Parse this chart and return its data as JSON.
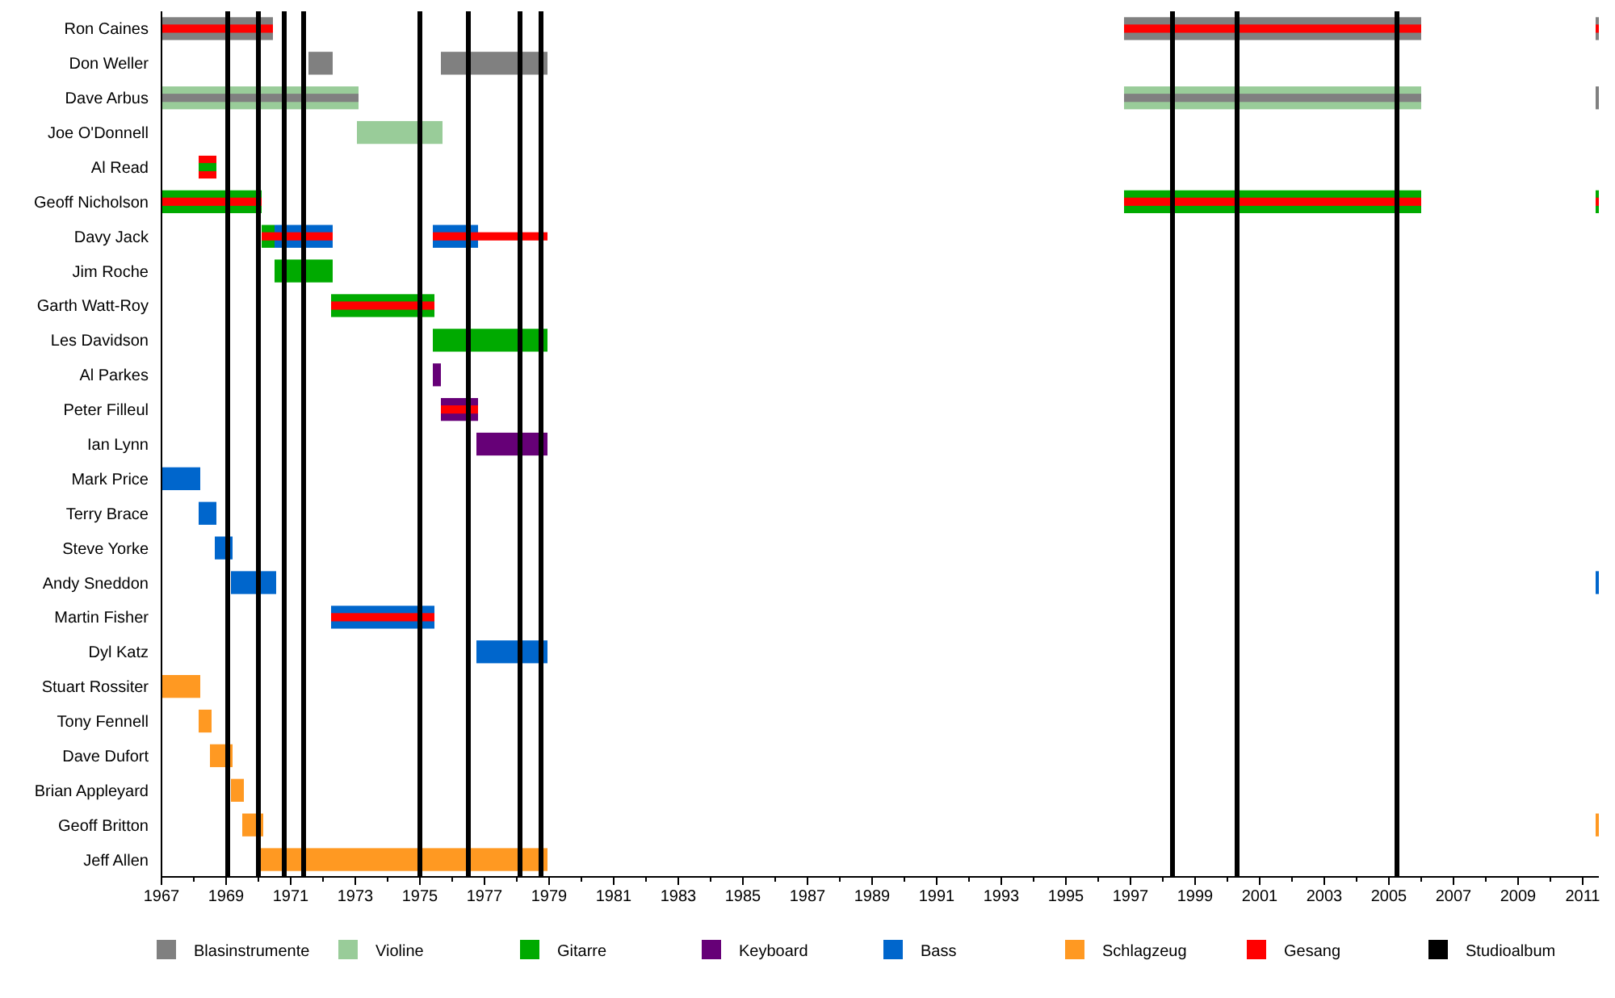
{
  "chart_data": {
    "type": "bar",
    "orientation": "horizontal",
    "legend": "bottom",
    "grid": false,
    "categories": [
      "Ron Caines",
      "Don Weller",
      "Dave Arbus",
      "Joe O'Donnell",
      "Al Read",
      "Geoff Nicholson",
      "Davy Jack",
      "Jim Roche",
      "Garth Watt-Roy",
      "Les Davidson",
      "Al Parkes",
      "Peter Filleul",
      "Ian Lynn",
      "Mark Price",
      "Terry Brace",
      "Steve Yorke",
      "Andy Sneddon",
      "Martin Fisher",
      "Dyl Katz",
      "Stuart Rossiter",
      "Tony Fennell",
      "Dave Dufort",
      "Brian Appleyard",
      "Geoff Britton",
      "Jeff Allen"
    ],
    "xlim": [
      1967,
      2011.5
    ],
    "xticks": [
      1967,
      {
        "value": 1968,
        "label": null
      },
      1969,
      {
        "value": 1970,
        "label": null
      },
      1971,
      {
        "value": 1972,
        "label": null
      },
      1973,
      {
        "value": 1974,
        "label": null
      },
      1975,
      {
        "value": 1976,
        "label": null
      },
      1977,
      {
        "value": 1978,
        "label": null
      },
      1979,
      {
        "value": 1980,
        "label": null
      },
      1981,
      {
        "value": 1982,
        "label": null
      },
      1983,
      {
        "value": 1984,
        "label": null
      },
      1985,
      {
        "value": 1986,
        "label": null
      },
      1987,
      {
        "value": 1988,
        "label": null
      },
      1989,
      {
        "value": 1990,
        "label": null
      },
      1991,
      {
        "value": 1992,
        "label": null
      },
      1993,
      {
        "value": 1994,
        "label": null
      },
      1995,
      {
        "value": 1996,
        "label": null
      },
      1997,
      {
        "value": 1998,
        "label": null
      },
      1999,
      {
        "value": 2000,
        "label": null
      },
      2001,
      {
        "value": 2002,
        "label": null
      },
      2003,
      {
        "value": 2004,
        "label": null
      },
      2005,
      {
        "value": 2006,
        "label": null
      },
      2007,
      {
        "value": 2008,
        "label": null
      },
      2009,
      {
        "value": 2010,
        "label": null
      },
      2011
    ],
    "series": [
      {
        "name": "Blasinstrumente",
        "color": "#808080",
        "base": [
          1967,
          1971.55,
          null,
          null,
          null,
          null,
          null,
          null,
          null,
          null,
          null,
          null,
          null,
          null,
          null,
          null,
          null,
          null,
          null,
          null,
          null,
          null,
          null,
          null,
          null
        ],
        "values": [
          3.45,
          0.75,
          null,
          null,
          null,
          null,
          null,
          null,
          null,
          null,
          null,
          null,
          null,
          null,
          null,
          null,
          null,
          null,
          null,
          null,
          null,
          null,
          null,
          null,
          null
        ]
      },
      {
        "color": "#808080",
        "base": [
          1996.8,
          1975.65,
          null,
          null,
          null,
          null,
          null,
          null,
          null,
          null,
          null,
          null,
          null,
          null,
          null,
          null,
          null,
          null,
          null,
          null,
          null,
          null,
          null,
          null,
          null
        ],
        "values": [
          9.2,
          3.3,
          null,
          null,
          null,
          null,
          null,
          null,
          null,
          null,
          null,
          null,
          null,
          null,
          null,
          null,
          null,
          null,
          null,
          null,
          null,
          null,
          null,
          null,
          null
        ]
      },
      {
        "color": "#808080",
        "base": [
          2011.4,
          null,
          2011.4,
          null,
          null,
          null,
          null,
          null,
          null,
          null,
          null,
          null,
          null,
          null,
          null,
          null,
          null,
          null,
          null,
          null,
          null,
          null,
          null,
          null,
          null
        ],
        "values": [
          0.1,
          null,
          0.1,
          null,
          null,
          null,
          null,
          null,
          null,
          null,
          null,
          null,
          null,
          null,
          null,
          null,
          null,
          null,
          null,
          null,
          null,
          null,
          null,
          null,
          null
        ]
      },
      {
        "name": "Violine",
        "color": "#99cc99",
        "base": [
          null,
          null,
          1967,
          1973.05,
          null,
          null,
          null,
          null,
          null,
          null,
          null,
          null,
          null,
          null,
          null,
          null,
          null,
          null,
          null,
          null,
          null,
          null,
          null,
          null,
          null
        ],
        "values": [
          null,
          null,
          6.1,
          2.65,
          null,
          null,
          null,
          null,
          null,
          null,
          null,
          null,
          null,
          null,
          null,
          null,
          null,
          null,
          null,
          null,
          null,
          null,
          null,
          null,
          null
        ]
      },
      {
        "color": "#99cc99",
        "base": [
          null,
          null,
          1996.8,
          null,
          null,
          null,
          null,
          null,
          null,
          null,
          null,
          null,
          null,
          null,
          null,
          null,
          null,
          null,
          null,
          null,
          null,
          null,
          null,
          null,
          null
        ],
        "values": [
          null,
          null,
          9.2,
          null,
          null,
          null,
          null,
          null,
          null,
          null,
          null,
          null,
          null,
          null,
          null,
          null,
          null,
          null,
          null,
          null,
          null,
          null,
          null,
          null,
          null
        ]
      },
      {
        "name": "Gitarre",
        "color": "#00aa00",
        "base": [
          null,
          null,
          null,
          null,
          null,
          1967,
          1970.1,
          1970.5,
          1972.25,
          1975.4,
          null,
          null,
          null,
          null,
          null,
          null,
          null,
          null,
          null,
          null,
          null,
          null,
          null,
          null,
          null
        ],
        "values": [
          null,
          null,
          null,
          null,
          null,
          3.1,
          0.4,
          1.8,
          3.2,
          3.55,
          null,
          null,
          null,
          null,
          null,
          null,
          null,
          null,
          null,
          null,
          null,
          null,
          null,
          null,
          null
        ]
      },
      {
        "color": "#00aa00",
        "base": [
          null,
          null,
          null,
          null,
          null,
          1996.8,
          null,
          null,
          null,
          null,
          null,
          null,
          null,
          null,
          null,
          null,
          null,
          null,
          null,
          null,
          null,
          null,
          null,
          null,
          null
        ],
        "values": [
          null,
          null,
          null,
          null,
          null,
          9.2,
          null,
          null,
          null,
          null,
          null,
          null,
          null,
          null,
          null,
          null,
          null,
          null,
          null,
          null,
          null,
          null,
          null,
          null,
          null
        ]
      },
      {
        "color": "#00aa00",
        "base": [
          null,
          null,
          null,
          null,
          null,
          2011.4,
          null,
          null,
          null,
          null,
          null,
          null,
          null,
          null,
          null,
          null,
          null,
          null,
          null,
          null,
          null,
          null,
          null,
          null,
          null
        ],
        "values": [
          null,
          null,
          null,
          null,
          null,
          0.1,
          null,
          null,
          null,
          null,
          null,
          null,
          null,
          null,
          null,
          null,
          null,
          null,
          null,
          null,
          null,
          null,
          null,
          null,
          null
        ]
      },
      {
        "name": "Keyboard",
        "color": "#660077",
        "base": [
          null,
          null,
          null,
          null,
          null,
          null,
          null,
          null,
          null,
          null,
          1975.4,
          1975.65,
          1976.75,
          null,
          null,
          null,
          null,
          null,
          null,
          null,
          null,
          null,
          null,
          null,
          null
        ],
        "values": [
          null,
          null,
          null,
          null,
          null,
          null,
          null,
          null,
          null,
          null,
          0.25,
          1.15,
          2.2,
          null,
          null,
          null,
          null,
          null,
          null,
          null,
          null,
          null,
          null,
          null,
          null
        ]
      },
      {
        "name": "Bass",
        "color": "#0066cc",
        "base": [
          null,
          null,
          null,
          null,
          null,
          null,
          1970.5,
          null,
          null,
          null,
          null,
          null,
          null,
          1967,
          1968.15,
          1968.65,
          1969.15,
          1972.25,
          1976.75,
          null,
          null,
          null,
          null,
          null,
          null
        ],
        "values": [
          null,
          null,
          null,
          null,
          null,
          null,
          1.8,
          null,
          null,
          null,
          null,
          null,
          null,
          1.2,
          0.55,
          0.55,
          1.4,
          3.2,
          2.2,
          null,
          null,
          null,
          null,
          null,
          null
        ]
      },
      {
        "color": "#0066cc",
        "base": [
          null,
          null,
          null,
          null,
          null,
          null,
          1975.4,
          null,
          null,
          null,
          null,
          null,
          null,
          null,
          null,
          null,
          2011.4,
          null,
          null,
          null,
          null,
          null,
          null,
          null,
          null
        ],
        "values": [
          null,
          null,
          null,
          null,
          null,
          null,
          1.4,
          null,
          null,
          null,
          null,
          null,
          null,
          null,
          null,
          null,
          0.1,
          null,
          null,
          null,
          null,
          null,
          null,
          null,
          null
        ]
      },
      {
        "name": "Schlagzeug",
        "color": "#ff9922",
        "base": [
          null,
          null,
          null,
          null,
          null,
          null,
          null,
          null,
          null,
          null,
          null,
          null,
          null,
          null,
          null,
          null,
          null,
          null,
          null,
          1967,
          1968.15,
          1968.5,
          1969.15,
          1969.5,
          1970.05
        ],
        "values": [
          null,
          null,
          null,
          null,
          null,
          null,
          null,
          null,
          null,
          null,
          null,
          null,
          null,
          null,
          null,
          null,
          null,
          null,
          null,
          1.2,
          0.4,
          0.7,
          0.4,
          0.65,
          8.9
        ]
      },
      {
        "color": "#ff9922",
        "base": [
          null,
          null,
          null,
          null,
          null,
          null,
          null,
          null,
          null,
          null,
          null,
          null,
          null,
          null,
          null,
          null,
          null,
          null,
          null,
          null,
          null,
          null,
          null,
          2011.4,
          null
        ],
        "values": [
          null,
          null,
          null,
          null,
          null,
          null,
          null,
          null,
          null,
          null,
          null,
          null,
          null,
          null,
          null,
          null,
          null,
          null,
          null,
          null,
          null,
          null,
          null,
          0.1,
          null
        ]
      },
      {
        "name": "Gesang",
        "color": "#ff0000",
        "base": [
          1967,
          null,
          null,
          null,
          1968.15,
          1967,
          1970.1,
          null,
          1972.25,
          null,
          null,
          1975.65,
          null,
          null,
          null,
          null,
          null,
          1972.25,
          null,
          null,
          null,
          null,
          null,
          null,
          null
        ],
        "values": [
          3.45,
          null,
          null,
          null,
          0.55,
          3.1,
          2.2,
          null,
          3.2,
          null,
          null,
          1.15,
          null,
          null,
          null,
          null,
          null,
          3.2,
          null,
          null,
          null,
          null,
          null,
          null,
          null
        ]
      },
      {
        "color": "#00aa00",
        "base": [
          null,
          null,
          null,
          null,
          1968.15,
          null,
          null,
          null,
          null,
          null,
          null,
          null,
          null,
          null,
          null,
          null,
          null,
          null,
          null,
          null,
          null,
          null,
          null,
          null,
          null
        ],
        "values": [
          null,
          null,
          null,
          null,
          0.55,
          null,
          null,
          null,
          null,
          null,
          null,
          null,
          null,
          null,
          null,
          null,
          null,
          null,
          null,
          null,
          null,
          null,
          null,
          null,
          null
        ]
      },
      {
        "color": "#ff0000",
        "base": [
          1996.8,
          null,
          null,
          null,
          null,
          1996.8,
          1975.4,
          null,
          null,
          null,
          null,
          null,
          null,
          null,
          null,
          null,
          null,
          null,
          null,
          null,
          null,
          null,
          null,
          null,
          null
        ],
        "values": [
          9.2,
          null,
          null,
          null,
          null,
          9.2,
          1.4,
          null,
          null,
          null,
          null,
          null,
          null,
          null,
          null,
          null,
          null,
          null,
          null,
          null,
          null,
          null,
          null,
          null,
          null
        ]
      },
      {
        "color": "#ff0000",
        "base": [
          2011.4,
          null,
          null,
          null,
          null,
          2011.4,
          1976.8,
          null,
          null,
          null,
          null,
          null,
          null,
          null,
          null,
          null,
          null,
          null,
          null,
          null,
          null,
          null,
          null,
          null,
          null
        ],
        "values": [
          0.1,
          null,
          null,
          null,
          null,
          0.1,
          2.15,
          null,
          null,
          null,
          null,
          null,
          null,
          null,
          null,
          null,
          null,
          null,
          null,
          null,
          null,
          null,
          null,
          null,
          null
        ]
      },
      {
        "color": "#808080",
        "base": [
          null,
          null,
          1967,
          null,
          null,
          null,
          null,
          null,
          null,
          null,
          null,
          null,
          null,
          null,
          null,
          null,
          null,
          null,
          null,
          null,
          null,
          null,
          null,
          null,
          null
        ],
        "values": [
          null,
          null,
          6.1,
          null,
          null,
          null,
          null,
          null,
          null,
          null,
          null,
          null,
          null,
          null,
          null,
          null,
          null,
          null,
          null,
          null,
          null,
          null,
          null,
          null,
          null
        ]
      },
      {
        "color": "#808080",
        "base": [
          null,
          null,
          1996.8,
          null,
          null,
          null,
          null,
          null,
          null,
          null,
          null,
          null,
          null,
          null,
          null,
          null,
          null,
          null,
          null,
          null,
          null,
          null,
          null,
          null,
          null
        ],
        "values": [
          null,
          null,
          9.2,
          null,
          null,
          null,
          null,
          null,
          null,
          null,
          null,
          null,
          null,
          null,
          null,
          null,
          null,
          null,
          null,
          null,
          null,
          null,
          null,
          null,
          null
        ]
      }
    ],
    "ref_lines": [
      {
        "axis": "x",
        "value": 1969.05,
        "label": "Studioalbum",
        "color": "#000000"
      },
      {
        "axis": "x",
        "value": 1970.0,
        "color": "#000000"
      },
      {
        "axis": "x",
        "value": 1970.8,
        "color": "#000000"
      },
      {
        "axis": "x",
        "value": 1971.4,
        "color": "#000000"
      },
      {
        "axis": "x",
        "value": 1975.0,
        "color": "#000000"
      },
      {
        "axis": "x",
        "value": 1976.5,
        "color": "#000000"
      },
      {
        "axis": "x",
        "value": 1978.1,
        "color": "#000000"
      },
      {
        "axis": "x",
        "value": 1978.75,
        "color": "#000000"
      },
      {
        "axis": "x",
        "value": 1998.3,
        "color": "#000000"
      },
      {
        "axis": "x",
        "value": 2000.3,
        "color": "#000000"
      },
      {
        "axis": "x",
        "value": 2005.25,
        "color": "#000000"
      }
    ]
  }
}
